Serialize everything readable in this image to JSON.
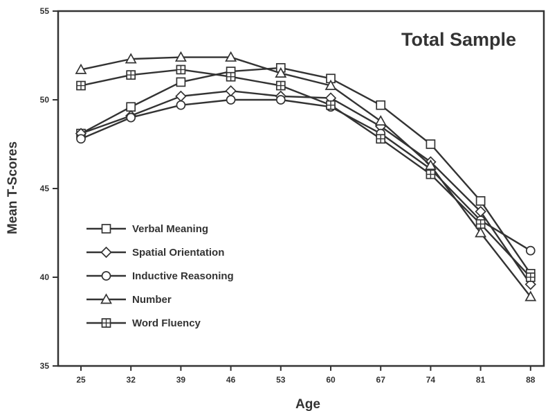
{
  "chart_data": {
    "type": "line",
    "title": "Total Sample",
    "xlabel": "Age",
    "ylabel": "Mean T-Scores",
    "categories": [
      "25",
      "32",
      "39",
      "46",
      "53",
      "60",
      "67",
      "74",
      "81",
      "88"
    ],
    "ylim": [
      35,
      55
    ],
    "yticks": [
      "35",
      "40",
      "45",
      "50",
      "55"
    ],
    "grid": false,
    "legend_position": "lower-left",
    "series": [
      {
        "name": "Verbal Meaning",
        "marker": "square",
        "values": [
          48.1,
          49.6,
          51.0,
          51.6,
          51.8,
          51.2,
          49.7,
          47.5,
          44.3,
          40.2
        ]
      },
      {
        "name": "Spatial Orientation",
        "marker": "diamond",
        "values": [
          48.1,
          49.1,
          50.2,
          50.5,
          50.2,
          50.1,
          48.5,
          46.5,
          43.7,
          39.6
        ]
      },
      {
        "name": "Inductive Reasoning",
        "marker": "circle",
        "values": [
          47.8,
          49.0,
          49.7,
          50.0,
          50.0,
          49.6,
          48.1,
          46.1,
          43.2,
          41.5
        ]
      },
      {
        "name": "Number",
        "marker": "triangle",
        "values": [
          51.7,
          52.3,
          52.4,
          52.4,
          51.5,
          50.8,
          48.8,
          46.3,
          42.5,
          38.9
        ]
      },
      {
        "name": "Word Fluency",
        "marker": "squareplus",
        "values": [
          50.8,
          51.4,
          51.7,
          51.3,
          50.8,
          49.7,
          47.8,
          45.8,
          43.0,
          40.0
        ]
      }
    ]
  }
}
